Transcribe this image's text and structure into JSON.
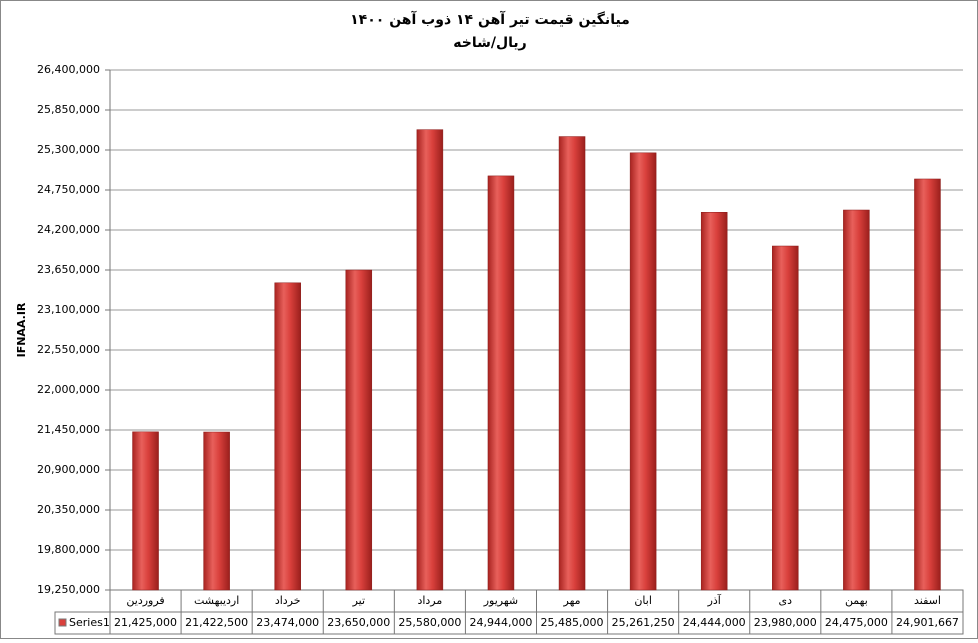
{
  "chart_data": {
    "type": "bar",
    "title": "میانگین قیمت تیر آهن ۱۴ ذوب آهن ۱۴۰۰",
    "subtitle": "ریال/شاخه",
    "y_label": "IFNAA.IR",
    "categories": [
      "فروردین",
      "اردیبهشت",
      "خرداد",
      "تیر",
      "مرداد",
      "شهریور",
      "مهر",
      "ابان",
      "آذر",
      "دی",
      "بهمن",
      "اسفند"
    ],
    "series": [
      {
        "name": "Series1",
        "color": "#d9403c",
        "values": [
          21425000,
          21422500,
          23474000,
          23650000,
          25580000,
          24944000,
          25485000,
          25261250,
          24444000,
          23980000,
          24475000,
          24901667
        ],
        "value_labels": [
          "21,425,000",
          "21,422,500",
          "23,474,000",
          "23,650,000",
          "25,580,000",
          "24,944,000",
          "25,485,000",
          "25,261,250",
          "24,444,000",
          "23,980,000",
          "24,475,000",
          "24,901,667"
        ]
      }
    ],
    "ylim": [
      19250000,
      26400000
    ],
    "yticks": [
      {
        "value": 19250000,
        "label": "19,250,000"
      },
      {
        "value": 19800000,
        "label": "19,800,000"
      },
      {
        "value": 20350000,
        "label": "20,350,000"
      },
      {
        "value": 20900000,
        "label": "20,900,000"
      },
      {
        "value": 21450000,
        "label": "21,450,000"
      },
      {
        "value": 22000000,
        "label": "22,000,000"
      },
      {
        "value": 22550000,
        "label": "22,550,000"
      },
      {
        "value": 23100000,
        "label": "23,100,000"
      },
      {
        "value": 23650000,
        "label": "23,650,000"
      },
      {
        "value": 24200000,
        "label": "24,200,000"
      },
      {
        "value": 24750000,
        "label": "24,750,000"
      },
      {
        "value": 25300000,
        "label": "25,300,000"
      },
      {
        "value": 25850000,
        "label": "25,850,000"
      },
      {
        "value": 26400000,
        "label": "26,400,000"
      }
    ],
    "grid": true
  }
}
